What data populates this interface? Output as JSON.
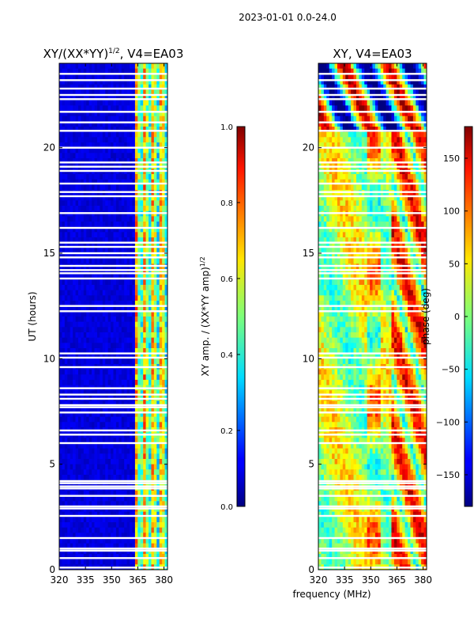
{
  "suptitle": "2023-01-01 0.0-24.0",
  "xlabel_shared": "frequency (MHz)",
  "chart_data": [
    {
      "type": "heatmap",
      "title_main": "XY/(XX*YY)",
      "title_exp": "1/2",
      "title_suffix": ", V4=EA03",
      "ylabel": "UT (hours)",
      "xlim": [
        320,
        382
      ],
      "ylim": [
        0,
        24
      ],
      "xticks": [
        320,
        335,
        350,
        365,
        380
      ],
      "yticks": [
        0,
        5,
        10,
        15,
        20
      ],
      "colorbar": {
        "label_main": "XY amp. / (XX*YY amp)",
        "label_exp": "1/2",
        "range": [
          0.0,
          1.0
        ],
        "ticks": [
          "0.0",
          "0.2",
          "0.4",
          "0.6",
          "0.8",
          "1.0"
        ],
        "colormap": "jet"
      },
      "flagged_hours": [
        0.1,
        0.55,
        0.9,
        1.0,
        1.5,
        2.55,
        2.9,
        3.0,
        3.5,
        3.85,
        3.95,
        4.1,
        4.2,
        6.0,
        6.4,
        6.6,
        7.45,
        7.7,
        7.8,
        8.1,
        8.3,
        8.6,
        9.6,
        10.05,
        10.25,
        12.25,
        12.5,
        13.8,
        14.05,
        14.2,
        14.4,
        14.8,
        15.0,
        15.3,
        15.5,
        16.2,
        16.9,
        17.7,
        17.9,
        18.3,
        18.9,
        19.1,
        19.3,
        20.0,
        20.8,
        21.2,
        21.7,
        22.3,
        22.5,
        22.8,
        23.2,
        23.5
      ]
    },
    {
      "type": "heatmap",
      "title": "XY, V4=EA03",
      "xlim": [
        320,
        382
      ],
      "ylim": [
        0,
        24
      ],
      "xticks": [
        320,
        335,
        350,
        365,
        380
      ],
      "yticks": [
        0,
        5,
        10,
        15,
        20
      ],
      "colorbar": {
        "label": "phase (deg)",
        "range": [
          -180,
          180
        ],
        "ticks": [
          "−150",
          "−100",
          "−50",
          "0",
          "50",
          "100",
          "150"
        ],
        "tick_values": [
          -150,
          -100,
          -50,
          0,
          50,
          100,
          150
        ],
        "colormap": "jet"
      },
      "flagged_hours": [
        0.1,
        0.55,
        0.9,
        1.0,
        1.5,
        2.55,
        2.9,
        3.0,
        3.5,
        3.85,
        3.95,
        4.1,
        4.2,
        6.0,
        6.4,
        6.6,
        7.45,
        7.7,
        7.8,
        8.1,
        8.3,
        8.6,
        9.6,
        10.05,
        10.25,
        12.25,
        12.5,
        13.8,
        14.05,
        14.2,
        14.4,
        14.8,
        15.0,
        15.3,
        15.5,
        16.2,
        16.9,
        17.7,
        17.9,
        18.3,
        18.9,
        19.1,
        19.3,
        20.0,
        20.8,
        21.2,
        21.7,
        22.3,
        22.5,
        22.8,
        23.2,
        23.5
      ]
    }
  ]
}
